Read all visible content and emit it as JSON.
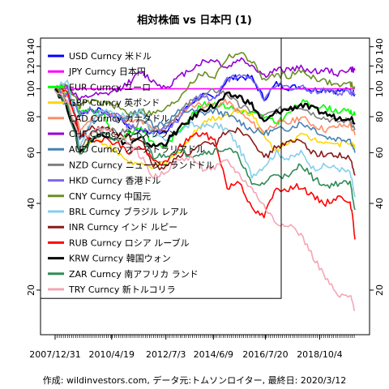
{
  "page": {
    "title": "相対株価 vs 日本円 (1)",
    "footer": "作成: wildinvestors.com, データ元:トムソンロイター, 最終日: 2020/3/12"
  },
  "chart_data": {
    "type": "line",
    "title": "相対株価 vs 日本円 (1)",
    "xlabel": "",
    "ylabel": "",
    "y_scale": "log",
    "ylim": [
      14,
      150
    ],
    "xlim": [
      "2007-12-31",
      "2020-03-12"
    ],
    "y_ticks": [
      20,
      40,
      60,
      80,
      100,
      120,
      140
    ],
    "x_tick_labels": [
      "2007/12/31",
      "2010/4/19",
      "2012/7/3",
      "2014/6/9",
      "2016/7/20",
      "2018/10/4"
    ],
    "x_tick_dates": [
      "2007-12-31",
      "2010-04-19",
      "2012-07-03",
      "2014-06-09",
      "2016-07-20",
      "2018-10-04"
    ],
    "legend_position": "top-left",
    "grid": false,
    "x": [
      "2007-12-31",
      "2008-06-30",
      "2008-12-31",
      "2009-06-30",
      "2009-12-31",
      "2010-06-30",
      "2010-12-31",
      "2011-06-30",
      "2011-12-31",
      "2012-06-30",
      "2012-12-31",
      "2013-06-30",
      "2013-12-31",
      "2014-06-30",
      "2014-12-31",
      "2015-06-30",
      "2015-12-31",
      "2016-06-30",
      "2016-12-31",
      "2017-06-30",
      "2017-12-31",
      "2018-06-30",
      "2018-12-31",
      "2019-06-30",
      "2019-12-31",
      "2020-03-12"
    ],
    "series": [
      {
        "name": "USD Curncy 米ドル",
        "color": "#0000ff",
        "values": [
          100,
          95,
          82,
          85,
          83,
          81,
          74,
          72,
          70,
          72,
          78,
          89,
          95,
          92,
          108,
          110,
          109,
          92,
          104,
          101,
          102,
          99,
          100,
          98,
          99,
          96
        ]
      },
      {
        "name": "JPY Curncy 日本円",
        "color": "#ff00ff",
        "values": [
          100,
          100,
          100,
          100,
          100,
          100,
          100,
          100,
          100,
          100,
          100,
          100,
          100,
          100,
          100,
          100,
          100,
          100,
          100,
          100,
          100,
          100,
          100,
          100,
          100,
          100
        ]
      },
      {
        "name": "EUR Curncy ユーロ",
        "color": "#00ff00",
        "values": [
          100,
          97,
          82,
          84,
          80,
          66,
          70,
          74,
          64,
          63,
          71,
          80,
          88,
          89,
          87,
          84,
          82,
          80,
          76,
          82,
          90,
          88,
          86,
          84,
          83,
          81
        ]
      },
      {
        "name": "GBP Curncy 英ポンド",
        "color": "#ffd700",
        "values": [
          100,
          90,
          62,
          67,
          65,
          60,
          56,
          54,
          54,
          55,
          60,
          67,
          77,
          79,
          81,
          85,
          82,
          68,
          61,
          66,
          69,
          67,
          66,
          64,
          66,
          62
        ]
      },
      {
        "name": "CAD Curncy カナダドル",
        "color": "#ff8c69",
        "values": [
          100,
          95,
          72,
          79,
          82,
          80,
          77,
          77,
          72,
          73,
          80,
          88,
          88,
          88,
          90,
          83,
          76,
          71,
          76,
          76,
          80,
          75,
          72,
          74,
          75,
          69
        ]
      },
      {
        "name": "CHF Curncy スイスフラン",
        "color": "#9400d3",
        "values": [
          100,
          103,
          91,
          95,
          95,
          99,
          105,
          114,
          106,
          101,
          109,
          117,
          124,
          126,
          118,
          127,
          121,
          111,
          116,
          117,
          118,
          115,
          116,
          113,
          117,
          116
        ]
      },
      {
        "name": "AUD Curncy オーストラリアドル",
        "color": "#4682b4",
        "values": [
          100,
          103,
          66,
          76,
          84,
          77,
          80,
          84,
          75,
          76,
          83,
          84,
          82,
          84,
          81,
          77,
          72,
          70,
          72,
          73,
          76,
          73,
          68,
          67,
          67,
          60
        ]
      },
      {
        "name": "NZD Curncy ニュージーランドドル",
        "color": "#7f7f7f",
        "values": [
          100,
          88,
          62,
          70,
          74,
          70,
          72,
          77,
          72,
          74,
          82,
          90,
          94,
          99,
          96,
          87,
          84,
          80,
          84,
          86,
          87,
          82,
          79,
          77,
          78,
          72
        ]
      },
      {
        "name": "HKD Curncy 香港ドル",
        "color": "#7b68ee",
        "values": [
          100,
          95,
          82,
          85,
          83,
          81,
          74,
          72,
          70,
          72,
          78,
          89,
          95,
          92,
          108,
          110,
          109,
          92,
          103,
          101,
          101,
          98,
          99,
          97,
          98,
          95
        ]
      },
      {
        "name": "CNY Curncy 中国元",
        "color": "#6b8e23",
        "values": [
          100,
          102,
          87,
          91,
          89,
          87,
          82,
          84,
          82,
          85,
          92,
          105,
          113,
          110,
          129,
          133,
          125,
          107,
          112,
          111,
          115,
          110,
          106,
          103,
          104,
          101
        ]
      },
      {
        "name": "BRL Curncy ブラジル レアル",
        "color": "#87ceeb",
        "values": [
          100,
          107,
          63,
          78,
          85,
          81,
          80,
          84,
          70,
          65,
          71,
          75,
          74,
          75,
          72,
          62,
          50,
          54,
          60,
          57,
          60,
          53,
          54,
          53,
          51,
          42
        ]
      },
      {
        "name": "INR Curncy インド ルピー",
        "color": "#8b1a1a",
        "values": [
          100,
          85,
          69,
          73,
          73,
          70,
          68,
          66,
          54,
          53,
          59,
          60,
          64,
          64,
          72,
          72,
          68,
          57,
          63,
          65,
          66,
          60,
          59,
          59,
          57,
          50
        ]
      },
      {
        "name": "RUB Curncy ロシア ルーブル",
        "color": "#ff0000",
        "values": [
          100,
          99,
          68,
          67,
          67,
          65,
          60,
          63,
          56,
          55,
          62,
          68,
          70,
          66,
          45,
          48,
          38,
          36,
          45,
          45,
          46,
          42,
          40,
          42,
          41,
          30
        ]
      },
      {
        "name": "KRW Curncy 韓国ウォン",
        "color": "#000000",
        "values": [
          100,
          86,
          60,
          67,
          70,
          67,
          64,
          67,
          63,
          65,
          72,
          78,
          85,
          87,
          95,
          94,
          88,
          76,
          83,
          85,
          88,
          85,
          82,
          79,
          80,
          76
        ]
      },
      {
        "name": "ZAR Curncy 南アフリカ ランド",
        "color": "#2e8b57",
        "values": [
          100,
          86,
          59,
          66,
          71,
          66,
          68,
          69,
          58,
          59,
          61,
          59,
          60,
          61,
          62,
          58,
          46,
          47,
          51,
          49,
          55,
          49,
          46,
          47,
          47,
          38
        ]
      },
      {
        "name": "TRY Curncy 新トルコリラ",
        "color": "#f4a6b4",
        "values": [
          100,
          90,
          68,
          71,
          73,
          69,
          65,
          58,
          49,
          52,
          56,
          58,
          53,
          53,
          56,
          50,
          45,
          39,
          34,
          34,
          31,
          26,
          22,
          19,
          19,
          17
        ]
      }
    ]
  }
}
